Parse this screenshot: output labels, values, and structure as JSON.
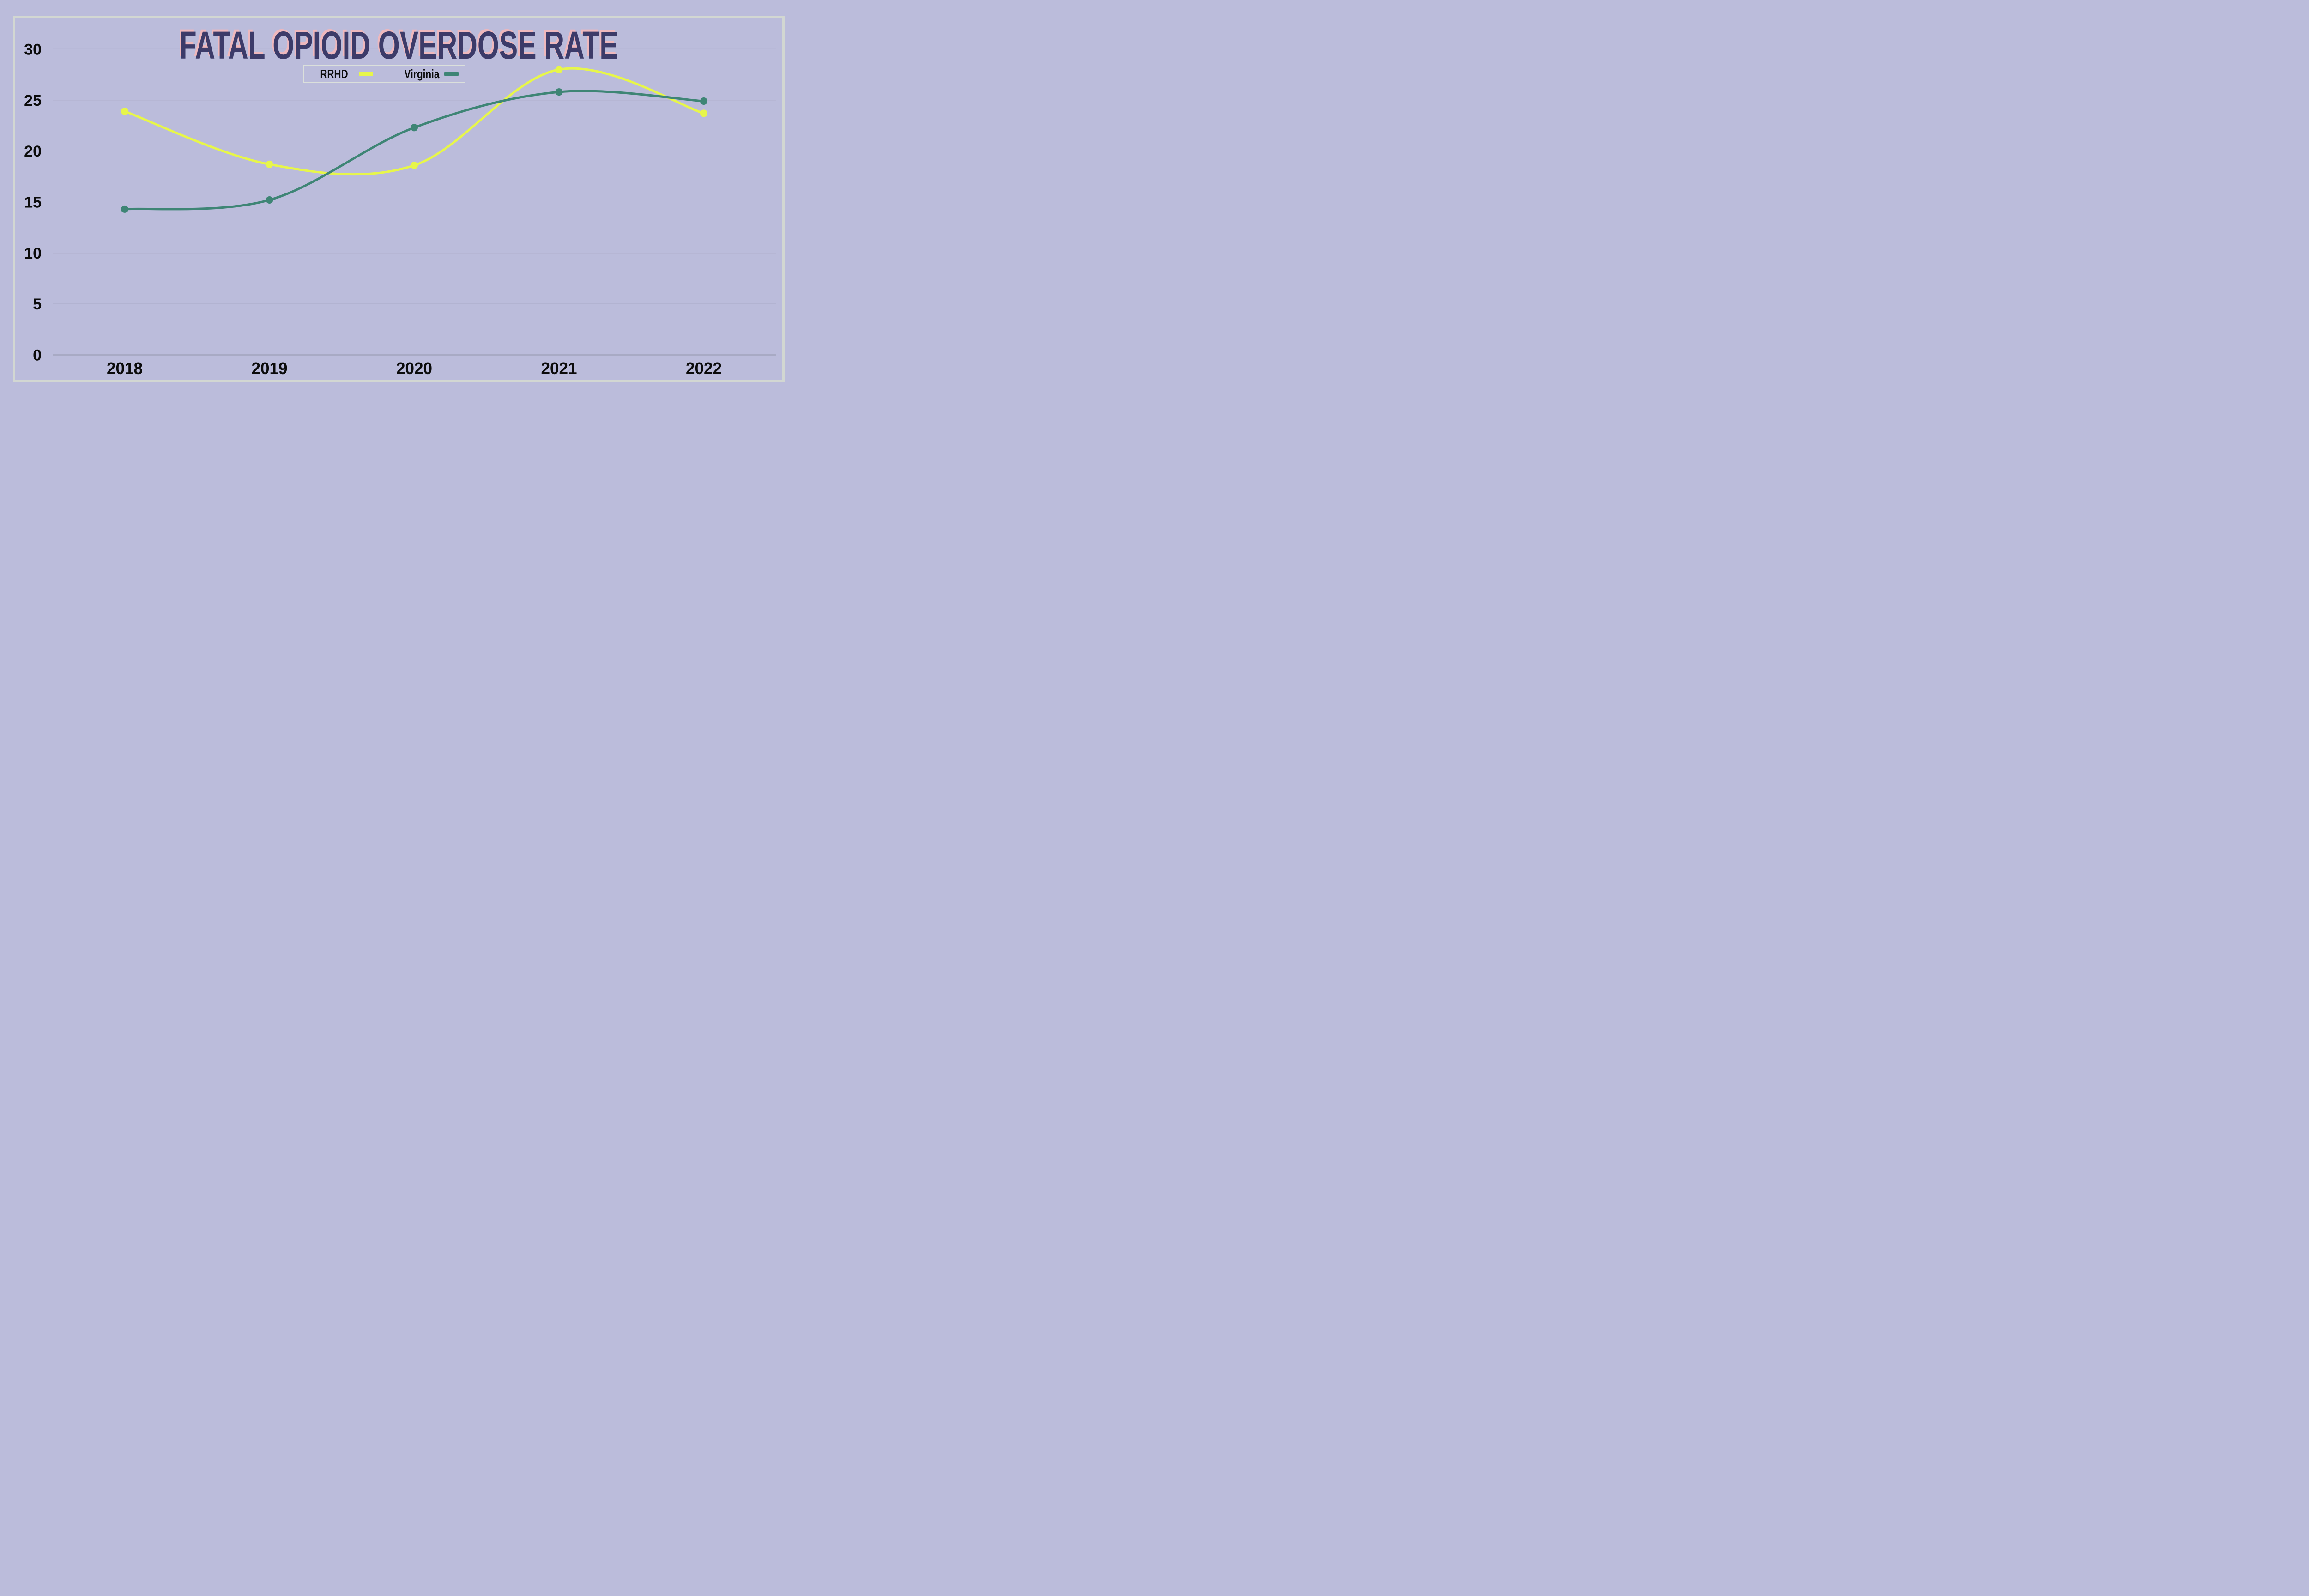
{
  "chart_data": {
    "type": "line",
    "title": "FATAL OPIOID OVERDOSE RATE",
    "categories": [
      "2018",
      "2019",
      "2020",
      "2021",
      "2022"
    ],
    "series": [
      {
        "name": "RRHD",
        "color": "#e7f64a",
        "values": [
          23.9,
          18.7,
          18.6,
          28.0,
          23.7
        ]
      },
      {
        "name": "Virginia",
        "color": "#3e8575",
        "values": [
          14.3,
          15.2,
          22.3,
          25.8,
          24.9
        ]
      }
    ],
    "xlabel": "",
    "ylabel": "",
    "ylim": [
      0,
      30
    ],
    "y_ticks": [
      0,
      5,
      10,
      15,
      20,
      25,
      30
    ],
    "grid": true,
    "legend_position": "top-center"
  },
  "colors": {
    "background": "#bbbcdb",
    "frame_border": "#d2d7d2",
    "legend_border": "#dbe0db",
    "gridline": "#a5a5c0",
    "zero_axis": "#72727e",
    "tick_text": "#0b0b0b",
    "title_fill": "#3c3b69",
    "title_shadow": "#eeb8bd"
  },
  "legend": {
    "items": [
      {
        "label": "RRHD"
      },
      {
        "label": "Virginia"
      }
    ]
  }
}
